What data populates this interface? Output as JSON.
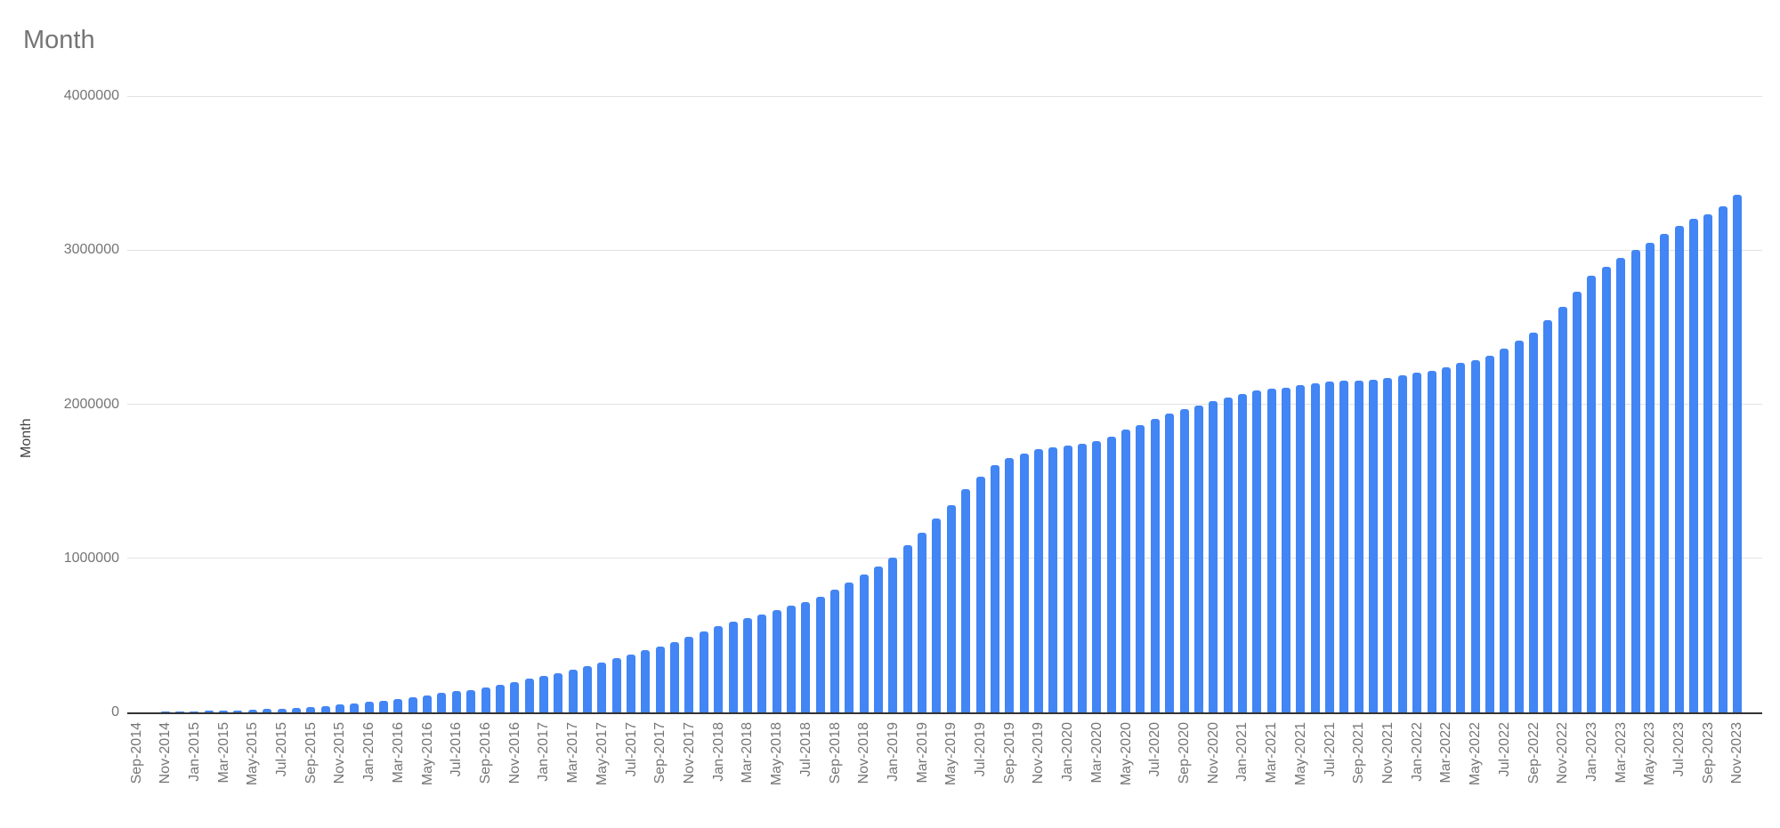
{
  "chart_title": "Month",
  "y_axis_title": "Month",
  "colors": {
    "bar": "#4285f4",
    "gridline": "#e3e3e3",
    "axis_line": "#333333",
    "tick_text": "#757575",
    "title_text": "#757575"
  },
  "chart_data": {
    "type": "bar",
    "title": "Month",
    "xlabel": "",
    "ylabel": "Month",
    "ylim": [
      0,
      4000000
    ],
    "grid": true,
    "legend_position": "none",
    "y_ticks": [
      {
        "label": "0",
        "value": 0
      },
      {
        "label": "1000000",
        "value": 1000000
      },
      {
        "label": "2000000",
        "value": 2000000
      },
      {
        "label": "3000000",
        "value": 3000000
      },
      {
        "label": "4000000",
        "value": 4000000
      }
    ],
    "x_label_every": 2,
    "categories": [
      "Sep-2014",
      "Oct-2014",
      "Nov-2014",
      "Dec-2014",
      "Jan-2015",
      "Feb-2015",
      "Mar-2015",
      "Apr-2015",
      "May-2015",
      "Jun-2015",
      "Jul-2015",
      "Aug-2015",
      "Sep-2015",
      "Oct-2015",
      "Nov-2015",
      "Dec-2015",
      "Jan-2016",
      "Feb-2016",
      "Mar-2016",
      "Apr-2016",
      "May-2016",
      "Jun-2016",
      "Jul-2016",
      "Aug-2016",
      "Sep-2016",
      "Oct-2016",
      "Nov-2016",
      "Dec-2016",
      "Jan-2017",
      "Feb-2017",
      "Mar-2017",
      "Apr-2017",
      "May-2017",
      "Jun-2017",
      "Jul-2017",
      "Aug-2017",
      "Sep-2017",
      "Oct-2017",
      "Nov-2017",
      "Dec-2017",
      "Jan-2018",
      "Feb-2018",
      "Mar-2018",
      "Apr-2018",
      "May-2018",
      "Jun-2018",
      "Jul-2018",
      "Aug-2018",
      "Sep-2018",
      "Oct-2018",
      "Nov-2018",
      "Dec-2018",
      "Jan-2019",
      "Feb-2019",
      "Mar-2019",
      "Apr-2019",
      "May-2019",
      "Jun-2019",
      "Jul-2019",
      "Aug-2019",
      "Sep-2019",
      "Oct-2019",
      "Nov-2019",
      "Dec-2019",
      "Jan-2020",
      "Feb-2020",
      "Mar-2020",
      "Apr-2020",
      "May-2020",
      "Jun-2020",
      "Jul-2020",
      "Aug-2020",
      "Sep-2020",
      "Oct-2020",
      "Nov-2020",
      "Dec-2020",
      "Jan-2021",
      "Feb-2021",
      "Mar-2021",
      "Apr-2021",
      "May-2021",
      "Jun-2021",
      "Jul-2021",
      "Aug-2021",
      "Sep-2021",
      "Oct-2021",
      "Nov-2021",
      "Dec-2021",
      "Jan-2022",
      "Feb-2022",
      "Mar-2022",
      "Apr-2022",
      "May-2022",
      "Jun-2022",
      "Jul-2022",
      "Aug-2022",
      "Sep-2022",
      "Oct-2022",
      "Nov-2022",
      "Dec-2022",
      "Jan-2023",
      "Feb-2023",
      "Mar-2023",
      "Apr-2023",
      "May-2023",
      "Jun-2023",
      "Jul-2023",
      "Aug-2023",
      "Sep-2023",
      "Oct-2023",
      "Nov-2023"
    ],
    "values": [
      1000,
      2000,
      3500,
      5000,
      7000,
      9000,
      11500,
      14000,
      17500,
      21000,
      25500,
      30500,
      36000,
      42500,
      50000,
      58500,
      67500,
      77000,
      86000,
      96000,
      111000,
      126000,
      137000,
      146000,
      161000,
      179000,
      197000,
      219000,
      239000,
      256000,
      278000,
      301000,
      324000,
      351000,
      376000,
      406000,
      429000,
      456000,
      488000,
      526000,
      561000,
      588000,
      613000,
      636000,
      663000,
      690000,
      718000,
      753000,
      796000,
      840000,
      892000,
      944000,
      1006000,
      1084000,
      1165000,
      1257000,
      1344000,
      1446000,
      1531000,
      1607000,
      1652000,
      1681000,
      1706000,
      1720000,
      1729000,
      1743000,
      1762000,
      1791000,
      1835000,
      1863000,
      1902000,
      1940000,
      1969000,
      1994000,
      2018000,
      2046000,
      2069000,
      2089000,
      2100000,
      2108000,
      2123000,
      2133000,
      2146000,
      2152000,
      2154000,
      2158000,
      2171000,
      2187000,
      2204000,
      2219000,
      2239000,
      2267000,
      2287000,
      2315000,
      2363000,
      2411000,
      2466000,
      2546000,
      2633000,
      2730000,
      2835000,
      2893000,
      2951000,
      3001000,
      3047000,
      3108000,
      3157000,
      3201000,
      3235000,
      3283000,
      3358000
    ]
  }
}
